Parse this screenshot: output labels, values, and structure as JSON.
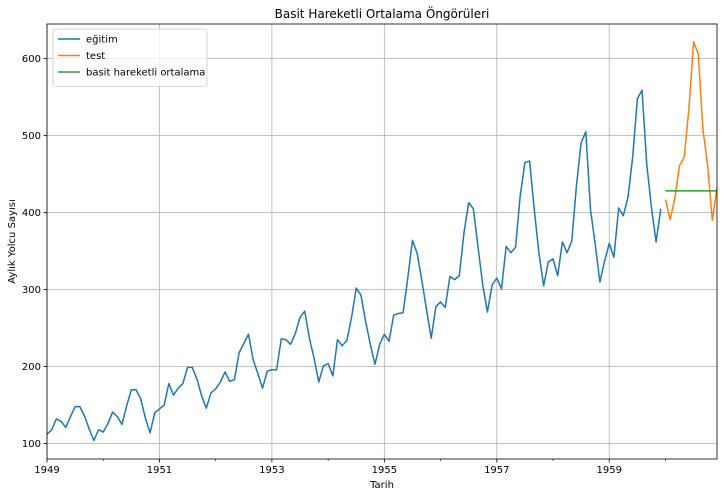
{
  "chart_data": {
    "type": "line",
    "title": "Basit Hareketli Ortalama Öngörüleri",
    "xlabel": "Tarih",
    "ylabel": "Aylık Yolcu Sayısı",
    "xlim": [
      "1949-01",
      "1960-12"
    ],
    "ylim": [
      80,
      645
    ],
    "x_ticks": [
      "1949",
      "1951",
      "1953",
      "1955",
      "1957",
      "1959"
    ],
    "y_ticks": [
      100,
      200,
      300,
      400,
      500,
      600
    ],
    "grid": true,
    "legend_position": "top-left",
    "series": [
      {
        "name": "eğitim",
        "color": "#1f77b4",
        "start": "1949-01",
        "values": [
          112,
          118,
          132,
          129,
          121,
          135,
          148,
          148,
          136,
          119,
          104,
          118,
          115,
          126,
          141,
          135,
          125,
          149,
          170,
          170,
          158,
          133,
          114,
          140,
          145,
          150,
          178,
          163,
          172,
          178,
          199,
          199,
          184,
          162,
          146,
          166,
          171,
          180,
          193,
          181,
          183,
          218,
          230,
          242,
          209,
          191,
          172,
          194,
          196,
          196,
          236,
          235,
          229,
          243,
          264,
          272,
          237,
          211,
          180,
          201,
          204,
          188,
          235,
          227,
          234,
          264,
          302,
          293,
          259,
          229,
          203,
          229,
          242,
          233,
          267,
          269,
          270,
          315,
          364,
          347,
          312,
          274,
          237,
          278,
          284,
          277,
          317,
          313,
          318,
          374,
          413,
          405,
          355,
          306,
          271,
          306,
          315,
          301,
          356,
          348,
          355,
          422,
          465,
          467,
          404,
          347,
          305,
          336,
          340,
          318,
          362,
          348,
          363,
          435,
          491,
          505,
          404,
          359,
          310,
          337,
          360,
          342,
          406,
          396,
          420,
          472,
          548,
          559,
          463,
          407,
          362,
          405
        ]
      },
      {
        "name": "test",
        "color": "#ff7f0e",
        "start": "1960-01",
        "values": [
          417,
          391,
          419,
          461,
          472,
          535,
          622,
          606,
          508,
          461,
          390,
          432
        ]
      },
      {
        "name": "basit hareketli ortalama",
        "color": "#2ca02c",
        "start": "1960-01",
        "values": [
          428.3,
          428.3,
          428.3,
          428.3,
          428.3,
          428.3,
          428.3,
          428.3,
          428.3,
          428.3,
          428.3,
          428.3
        ]
      }
    ]
  }
}
